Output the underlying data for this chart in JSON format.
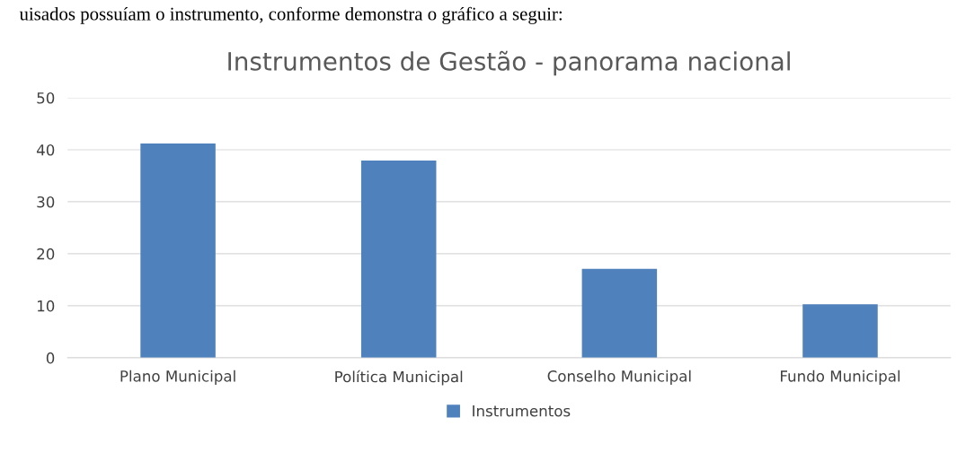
{
  "chart_data": {
    "type": "bar",
    "title": "Instrumentos de Gestão - panorama nacional",
    "annotations": [
      "uisados possuíam o instrumento, conforme demonstra o gráfico a seguir:"
    ],
    "categories": [
      "Plano Municipal",
      "Política Municipal",
      "Conselho Municipal",
      "Fundo Municipal"
    ],
    "series": [
      {
        "name": "Instrumentos",
        "color": "#4f81bd",
        "values": [
          41.2,
          37.9,
          17.1,
          10.3
        ]
      }
    ],
    "ylim": [
      0,
      50
    ],
    "yticks": [
      0,
      10,
      20,
      30,
      40,
      50
    ],
    "grid": "y",
    "legend": "bottom"
  }
}
